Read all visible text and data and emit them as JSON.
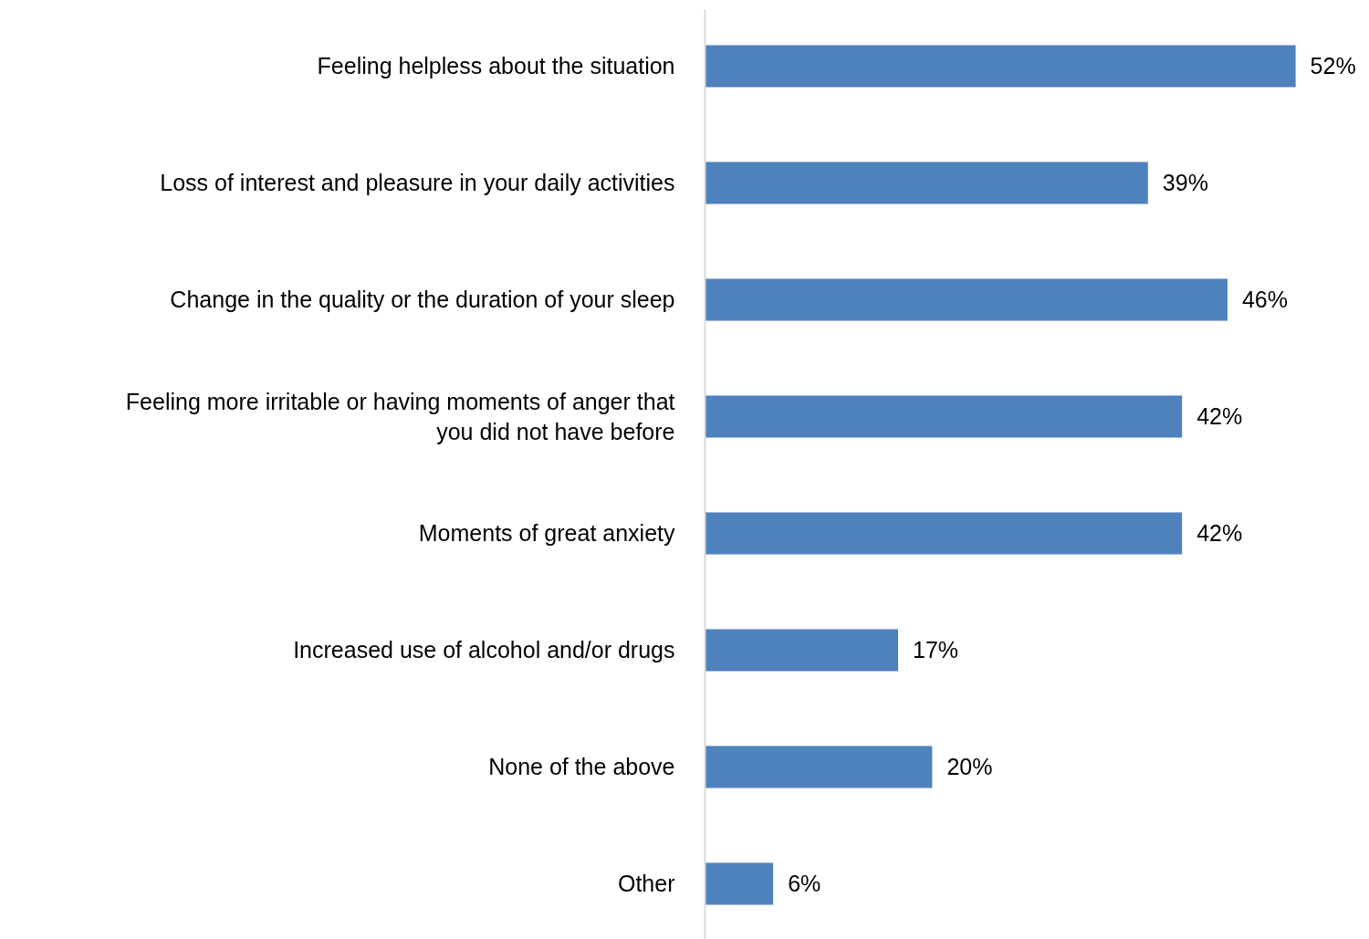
{
  "chart_data": {
    "type": "bar",
    "orientation": "horizontal",
    "categories": [
      "Feeling helpless about the situation",
      "Loss of interest and pleasure in your daily activities",
      "Change in the quality or the duration of your sleep",
      "Feeling more irritable or having moments of anger that you did not have before",
      "Moments of great anxiety",
      "Increased use of alcohol and/or drugs",
      "None of the above",
      "Other"
    ],
    "values": [
      52,
      39,
      46,
      42,
      42,
      17,
      20,
      6
    ],
    "value_labels": [
      "52%",
      "39%",
      "46%",
      "42%",
      "42%",
      "17%",
      "20%",
      "6%"
    ],
    "color": "#4f81bd"
  }
}
